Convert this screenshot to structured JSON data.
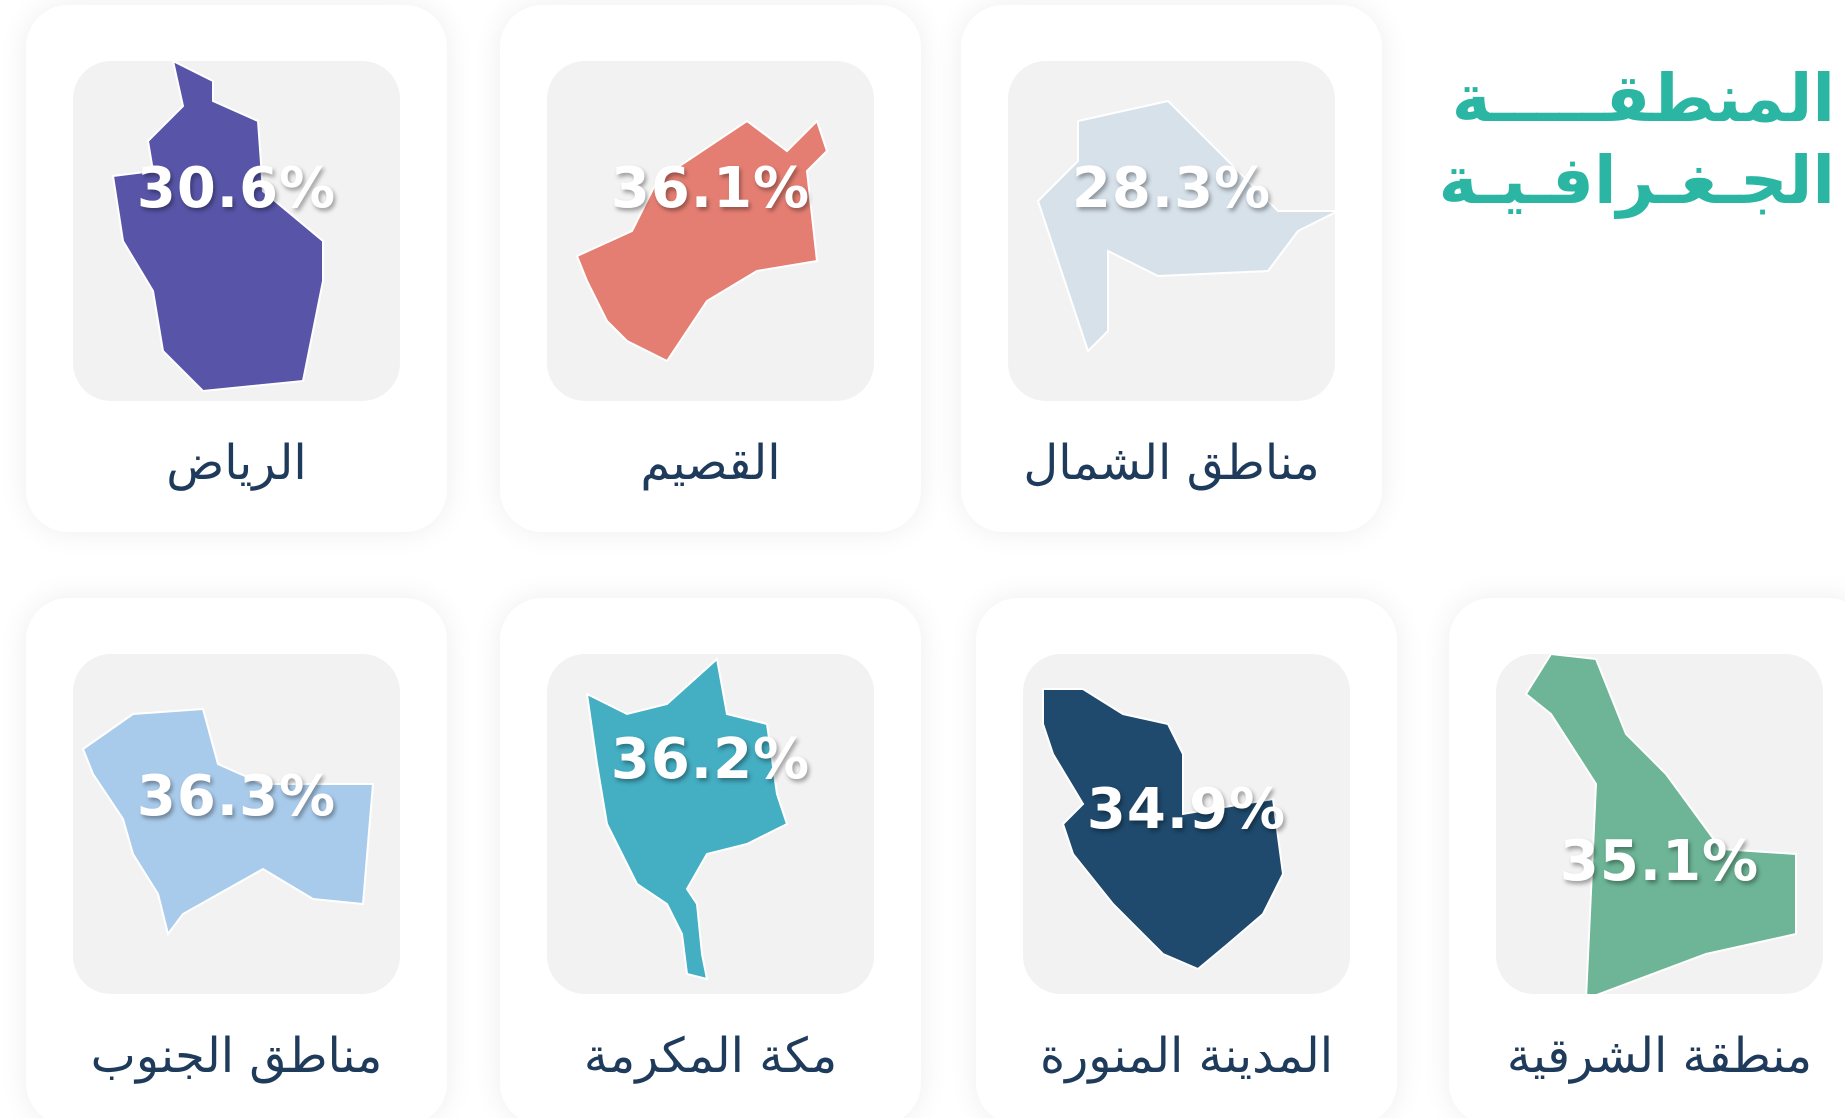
{
  "header": {
    "title_line1": "المنطقـــــة",
    "title_line2": "الجـغـرافـيـة"
  },
  "regions": [
    {
      "name": "مناطق الشمال",
      "percent": "28.3%"
    },
    {
      "name": "القصيم",
      "percent": "36.1%"
    },
    {
      "name": "الرياض",
      "percent": "30.6%"
    },
    {
      "name": "منطقة الشرقية",
      "percent": "35.1%"
    },
    {
      "name": "المدينة المنورة",
      "percent": "34.9%"
    },
    {
      "name": "مكة المكرمة",
      "percent": "36.2%"
    },
    {
      "name": "مناطق الجنوب",
      "percent": "36.3%"
    }
  ]
}
